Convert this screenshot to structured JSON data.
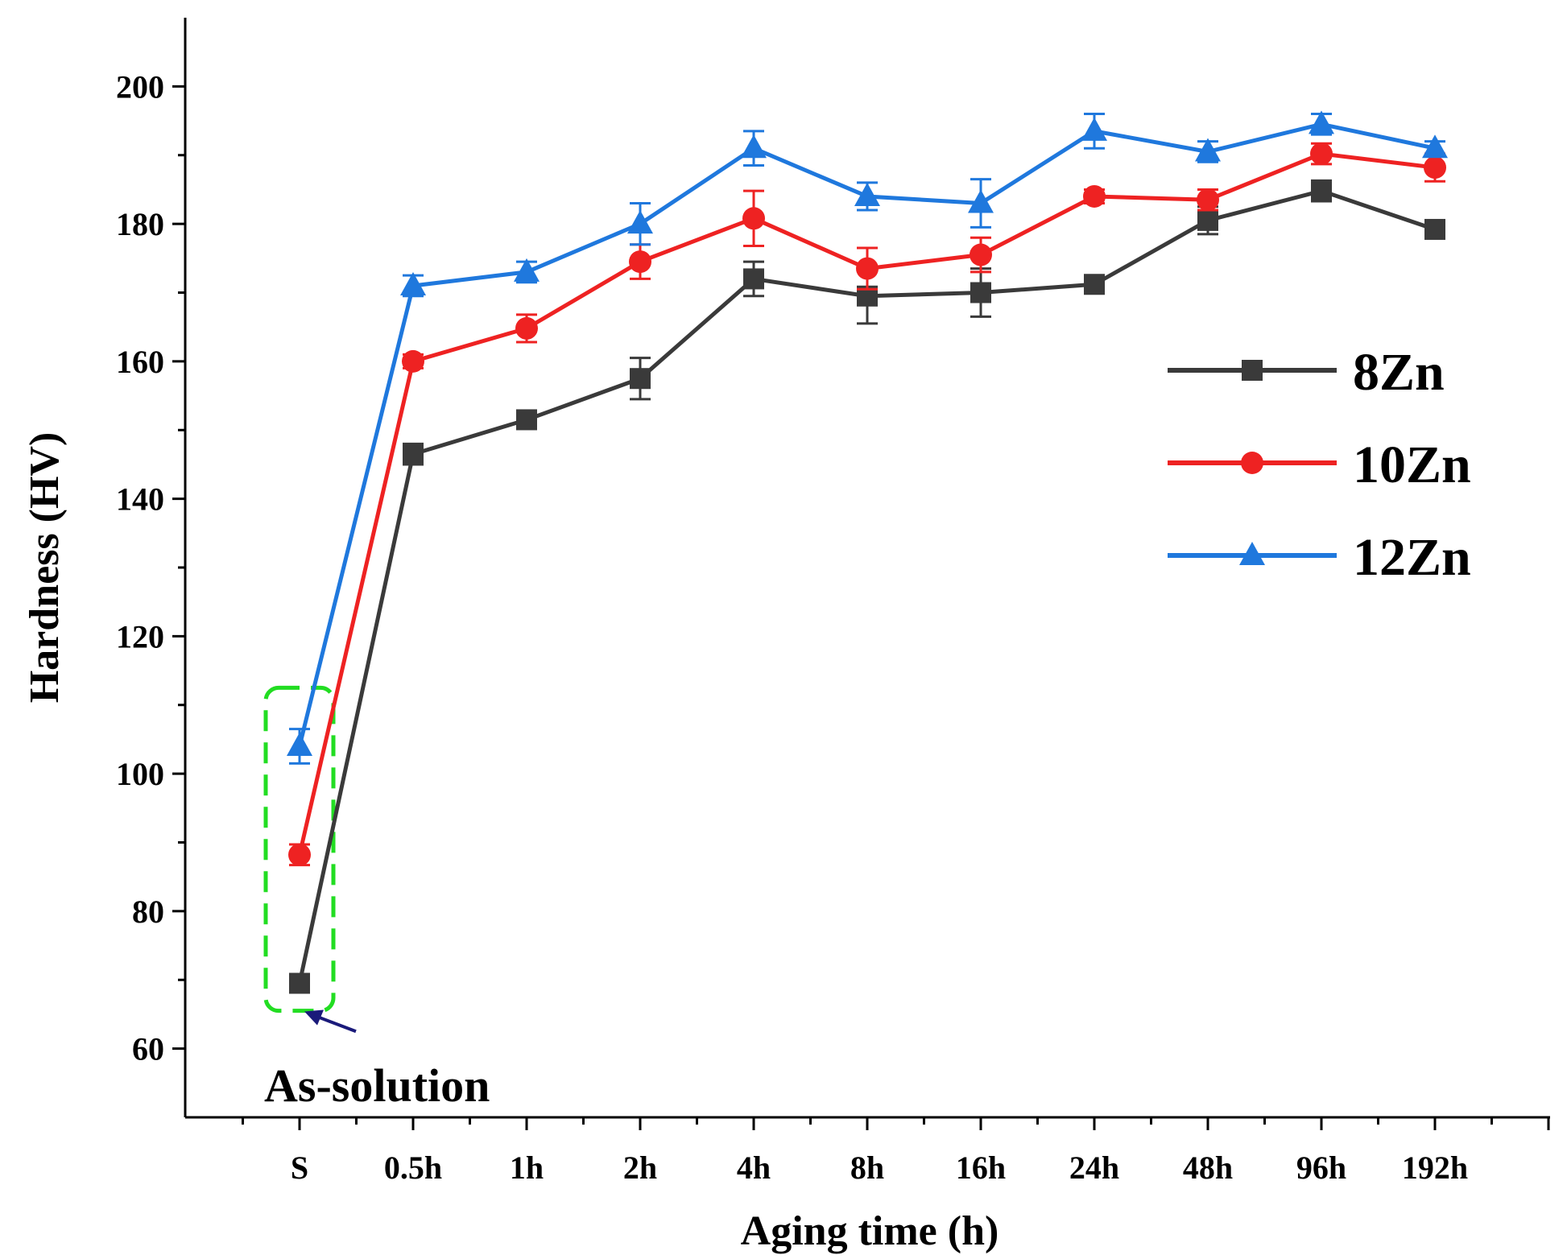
{
  "chart_data": {
    "type": "line",
    "title": "",
    "xlabel": "Aging time (h)",
    "ylabel": "Hardness (HV)",
    "categories": [
      "S",
      "0.5h",
      "1h",
      "2h",
      "4h",
      "8h",
      "16h",
      "24h",
      "48h",
      "96h",
      "192h"
    ],
    "ylim": [
      50,
      210
    ],
    "yticks": [
      60,
      80,
      100,
      120,
      140,
      160,
      180,
      200
    ],
    "grid": false,
    "legend_position": "right",
    "series": [
      {
        "name": "8Zn",
        "color": "#3a3a3a",
        "marker": "square",
        "values": [
          69.5,
          146.5,
          151.5,
          157.5,
          172,
          169.5,
          170,
          171.2,
          180.5,
          184.8,
          179.2
        ],
        "errors": [
          0,
          1.5,
          1.0,
          3.0,
          2.5,
          4.0,
          3.5,
          1.0,
          2.0,
          1.5,
          0.5
        ]
      },
      {
        "name": "10Zn",
        "color": "#ee2222",
        "marker": "circle",
        "values": [
          88.2,
          160,
          164.8,
          174.5,
          180.8,
          173.5,
          175.5,
          184,
          183.5,
          190.2,
          188.2
        ],
        "errors": [
          1.5,
          1.0,
          2.0,
          2.5,
          4.0,
          3.0,
          2.5,
          1.0,
          1.5,
          1.5,
          2.0
        ]
      },
      {
        "name": "12Zn",
        "color": "#1f78dd",
        "marker": "triangle",
        "values": [
          104,
          171,
          173,
          180,
          191,
          184,
          183,
          193.5,
          190.5,
          194.5,
          191
        ],
        "errors": [
          2.5,
          1.5,
          1.5,
          3.0,
          2.5,
          2.0,
          3.5,
          2.5,
          1.5,
          1.5,
          1.0
        ]
      }
    ],
    "annotations": [
      {
        "text": "As-solution",
        "target_category": "S",
        "box_color": "#22dd22",
        "arrow_color": "#1a1a7a"
      }
    ]
  }
}
